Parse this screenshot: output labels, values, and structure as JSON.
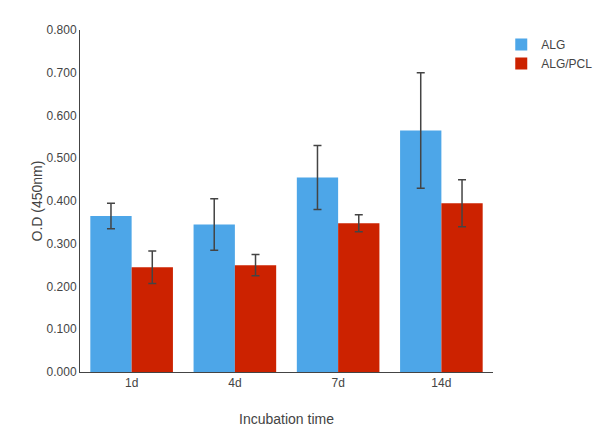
{
  "chart_data": {
    "type": "bar",
    "xlabel": "Incubation time",
    "ylabel": "O.D (450nm)",
    "categories": [
      "1d",
      "4d",
      "7d",
      "14d"
    ],
    "series": [
      {
        "name": "ALG",
        "color": "#4da6e8",
        "values": [
          0.365,
          0.345,
          0.455,
          0.565
        ],
        "errors": [
          0.03,
          0.06,
          0.075,
          0.135
        ]
      },
      {
        "name": "ALG/PCL",
        "color": "#cc2200",
        "values": [
          0.245,
          0.25,
          0.348,
          0.395
        ],
        "errors": [
          0.038,
          0.025,
          0.02,
          0.055
        ]
      }
    ],
    "ylim": [
      0.0,
      0.8
    ],
    "yticks": [
      {
        "value": 0.0,
        "label": "0.000"
      },
      {
        "value": 0.1,
        "label": "0.100"
      },
      {
        "value": 0.2,
        "label": "0.200"
      },
      {
        "value": 0.3,
        "label": "0.300"
      },
      {
        "value": 0.4,
        "label": "0.400"
      },
      {
        "value": 0.5,
        "label": "0.500"
      },
      {
        "value": 0.6,
        "label": "0.600"
      },
      {
        "value": 0.7,
        "label": "0.700"
      },
      {
        "value": 0.8,
        "label": "0.800"
      }
    ],
    "grid": false,
    "legend": "right"
  }
}
